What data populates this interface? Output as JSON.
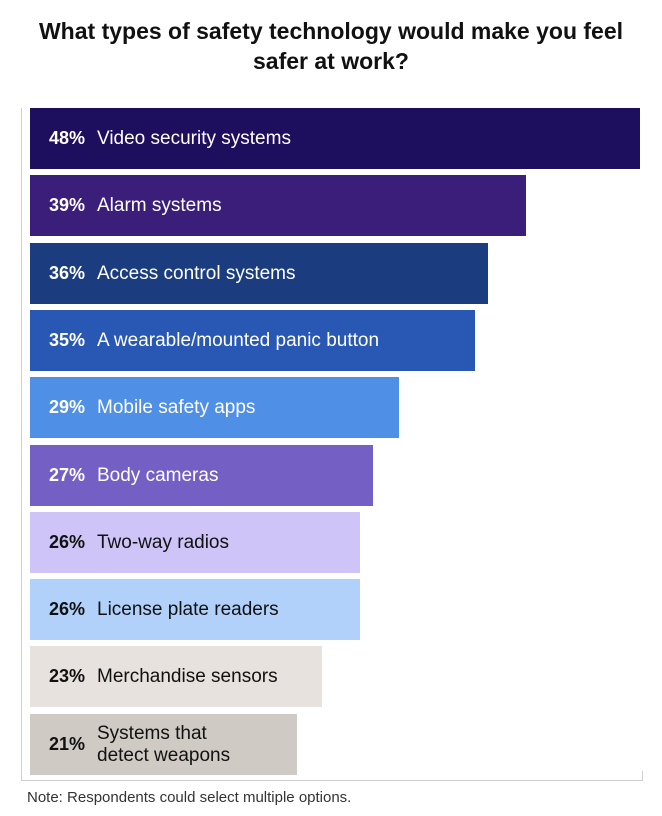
{
  "title_line1": "What types of safety technology would make you feel",
  "title_line2": "safer at work?",
  "note": "Note: Respondents could select multiple options.",
  "chart_data": {
    "type": "bar",
    "orientation": "horizontal",
    "title": "What types of safety technology would make you feel safer at work?",
    "categories": [
      "Video security systems",
      "Alarm systems",
      "Access control systems",
      "A wearable/mounted panic button",
      "Mobile safety apps",
      "Body cameras",
      "Two-way radios",
      "License plate readers",
      "Merchandise sensors",
      "Systems that\n detect weapons"
    ],
    "values": [
      48,
      39,
      36,
      35,
      29,
      27,
      26,
      26,
      23,
      21
    ],
    "value_labels": [
      "48%",
      "39%",
      "36%",
      "35%",
      "29%",
      "27%",
      "26%",
      "26%",
      "23%",
      "21%"
    ],
    "colors": [
      "#1d0e5e",
      "#3b1e7a",
      "#1b3c7e",
      "#2858b4",
      "#4f8fe6",
      "#7460c4",
      "#cfc4f7",
      "#b1d1fb",
      "#e7e2dd",
      "#d0cac4"
    ],
    "text_colors": [
      "#ffffff",
      "#ffffff",
      "#ffffff",
      "#ffffff",
      "#ffffff",
      "#ffffff",
      "#111111",
      "#111111",
      "#111111",
      "#111111"
    ],
    "unit": "%",
    "xlim": [
      0,
      48
    ],
    "grid": false,
    "legend": "none"
  }
}
